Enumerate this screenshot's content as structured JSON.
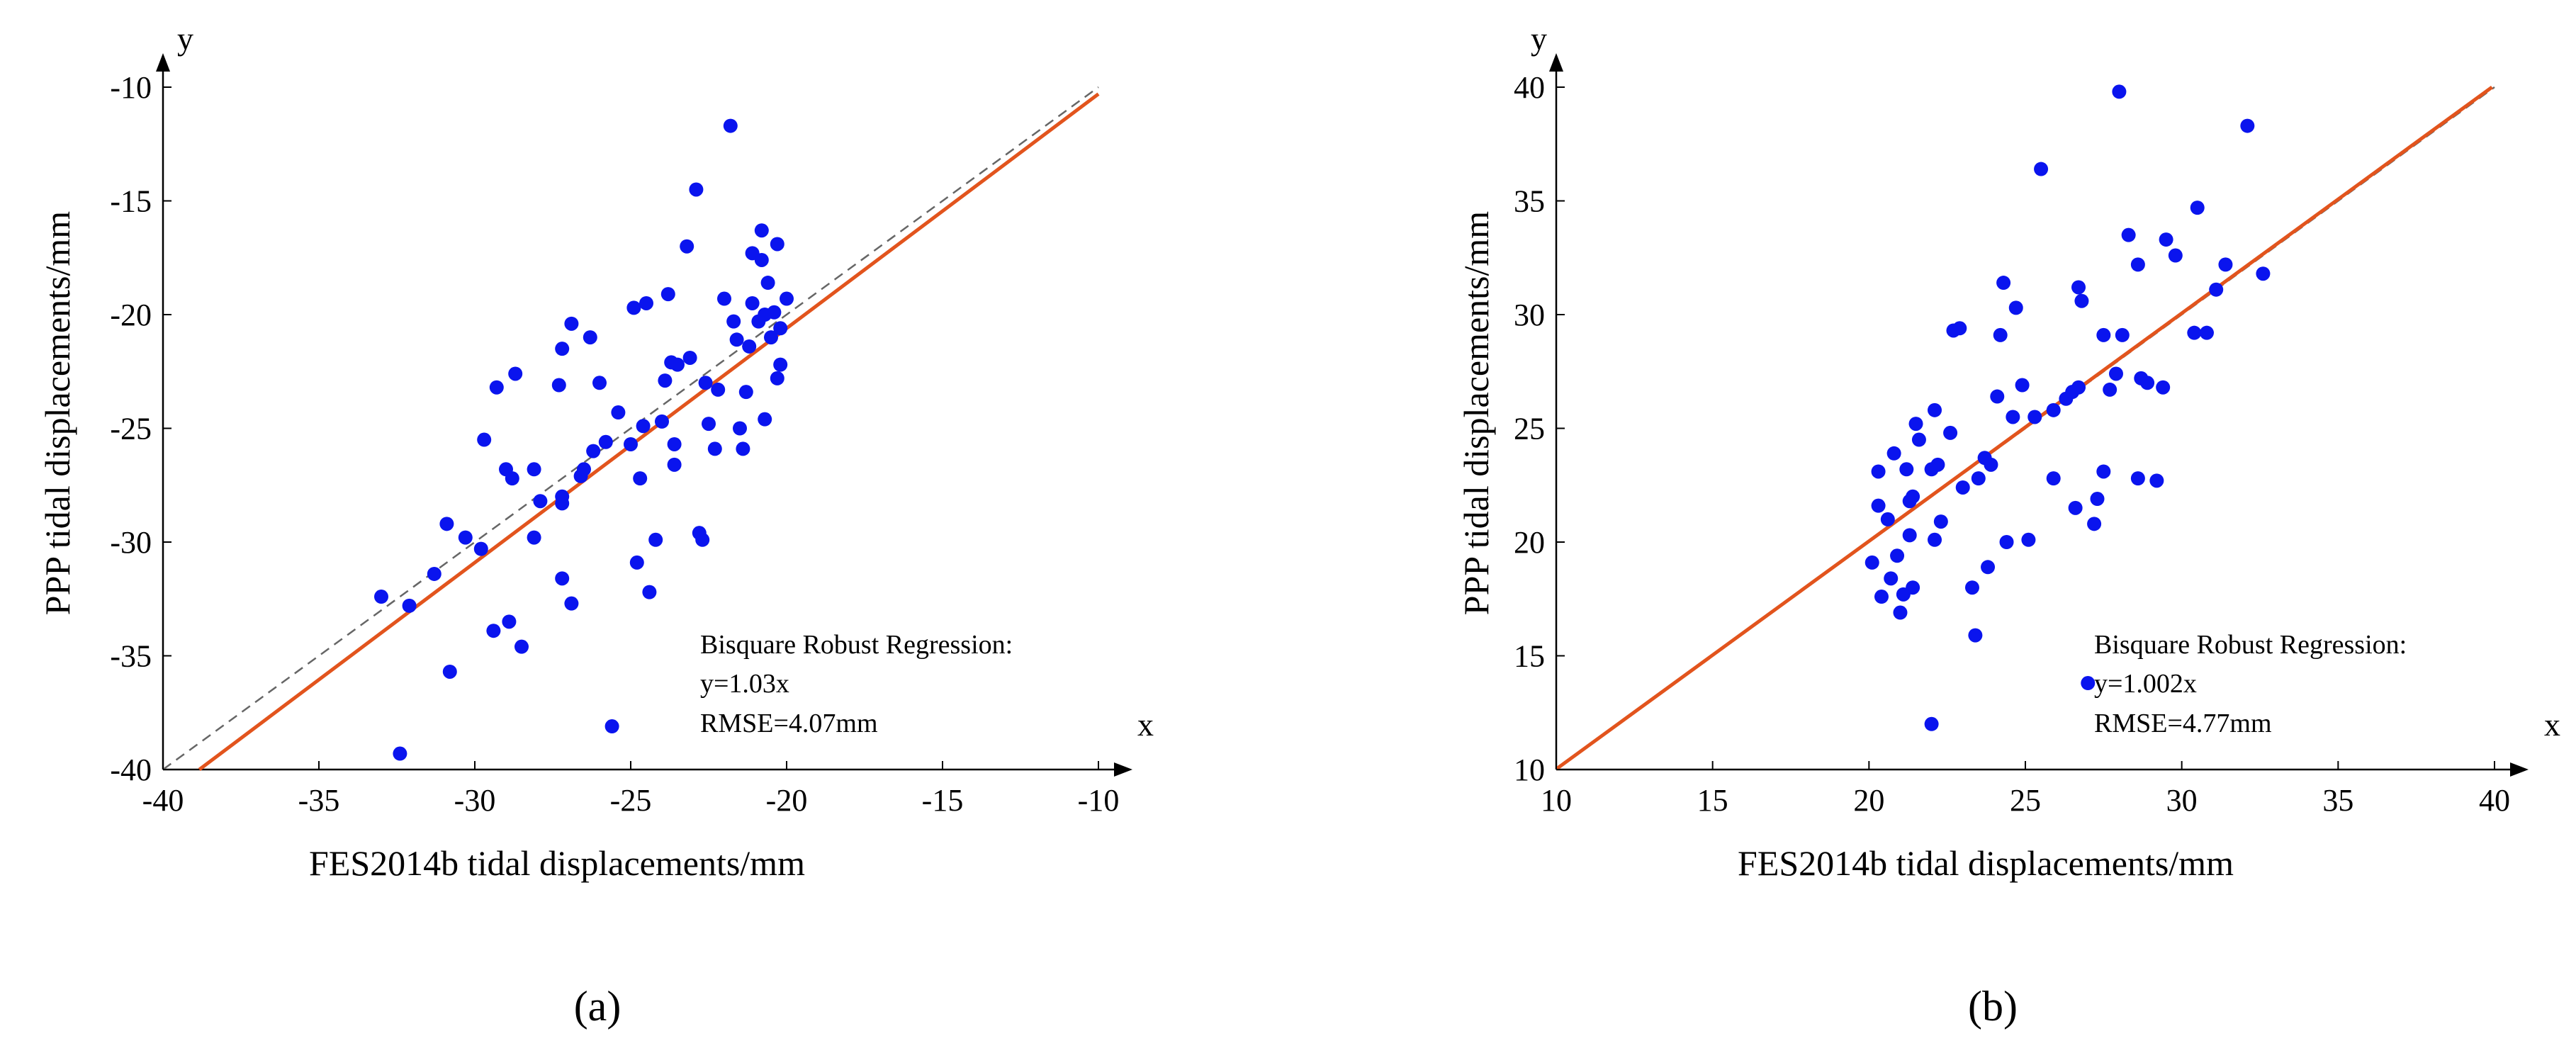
{
  "chart_data": [
    {
      "type": "scatter",
      "panel_label": "(a)",
      "xlabel": "FES2014b tidal displacements/mm",
      "ylabel": "PPP tidal displacements/mm",
      "x_arrow_label": "x",
      "y_arrow_label": "y",
      "xlim": [
        -40,
        -10
      ],
      "ylim": [
        -40,
        -10
      ],
      "xticks": [
        -40,
        -35,
        -30,
        -25,
        -20,
        -15,
        -10
      ],
      "yticks": [
        -40,
        -35,
        -30,
        -25,
        -20,
        -15,
        -10
      ],
      "grid": false,
      "annotation": [
        "Bisquare Robust Regression:",
        "y=1.03x",
        "RMSE=4.07mm"
      ],
      "fit_line": {
        "slope": 1.03,
        "color": "#e2541d"
      },
      "reference_line": {
        "slope": 1.0,
        "style": "dashed",
        "color": "#666666"
      },
      "marker_color": "#0a14ee",
      "points": [
        [
          -33.0,
          -32.4
        ],
        [
          -32.1,
          -32.8
        ],
        [
          -32.4,
          -39.3
        ],
        [
          -31.3,
          -31.4
        ],
        [
          -30.9,
          -29.2
        ],
        [
          -30.8,
          -35.7
        ],
        [
          -30.3,
          -29.8
        ],
        [
          -29.8,
          -30.3
        ],
        [
          -29.7,
          -25.5
        ],
        [
          -29.4,
          -33.9
        ],
        [
          -29.3,
          -23.2
        ],
        [
          -29.0,
          -26.8
        ],
        [
          -28.9,
          -33.5
        ],
        [
          -28.8,
          -27.2
        ],
        [
          -28.7,
          -22.6
        ],
        [
          -28.5,
          -34.6
        ],
        [
          -28.1,
          -29.8
        ],
        [
          -28.1,
          -26.8
        ],
        [
          -27.9,
          -28.2
        ],
        [
          -27.3,
          -23.1
        ],
        [
          -27.2,
          -21.5
        ],
        [
          -27.2,
          -28.0
        ],
        [
          -27.2,
          -28.3
        ],
        [
          -27.2,
          -31.6
        ],
        [
          -26.9,
          -32.7
        ],
        [
          -26.9,
          -20.4
        ],
        [
          -26.6,
          -27.1
        ],
        [
          -26.5,
          -26.8
        ],
        [
          -26.3,
          -21.0
        ],
        [
          -26.2,
          -26.0
        ],
        [
          -26.0,
          -23.0
        ],
        [
          -25.8,
          -25.6
        ],
        [
          -25.6,
          -38.1
        ],
        [
          -25.4,
          -24.3
        ],
        [
          -25.0,
          -25.7
        ],
        [
          -24.9,
          -19.7
        ],
        [
          -24.8,
          -30.9
        ],
        [
          -24.7,
          -27.2
        ],
        [
          -24.6,
          -24.9
        ],
        [
          -24.5,
          -19.5
        ],
        [
          -24.4,
          -32.2
        ],
        [
          -24.2,
          -29.9
        ],
        [
          -24.0,
          -24.7
        ],
        [
          -23.9,
          -22.9
        ],
        [
          -23.8,
          -19.1
        ],
        [
          -23.7,
          -22.1
        ],
        [
          -23.6,
          -26.6
        ],
        [
          -23.6,
          -25.7
        ],
        [
          -23.5,
          -22.2
        ],
        [
          -23.2,
          -17.0
        ],
        [
          -23.1,
          -21.9
        ],
        [
          -22.9,
          -14.5
        ],
        [
          -22.8,
          -29.6
        ],
        [
          -22.7,
          -29.9
        ],
        [
          -22.6,
          -23.0
        ],
        [
          -22.5,
          -24.8
        ],
        [
          -22.3,
          -25.9
        ],
        [
          -22.2,
          -23.3
        ],
        [
          -22.0,
          -19.3
        ],
        [
          -21.8,
          -11.7
        ],
        [
          -21.7,
          -20.3
        ],
        [
          -21.6,
          -21.1
        ],
        [
          -21.5,
          -25.0
        ],
        [
          -21.4,
          -25.9
        ],
        [
          -21.3,
          -23.4
        ],
        [
          -21.2,
          -21.4
        ],
        [
          -21.1,
          -19.5
        ],
        [
          -21.1,
          -17.3
        ],
        [
          -20.9,
          -20.3
        ],
        [
          -20.8,
          -16.3
        ],
        [
          -20.8,
          -17.6
        ],
        [
          -20.7,
          -20.0
        ],
        [
          -20.7,
          -24.6
        ],
        [
          -20.6,
          -18.6
        ],
        [
          -20.5,
          -21.0
        ],
        [
          -20.4,
          -19.9
        ],
        [
          -20.3,
          -22.8
        ],
        [
          -20.3,
          -16.9
        ],
        [
          -20.2,
          -20.6
        ],
        [
          -20.2,
          -22.2
        ],
        [
          -20.0,
          -19.3
        ]
      ]
    },
    {
      "type": "scatter",
      "panel_label": "(b)",
      "xlabel": "FES2014b tidal displacements/mm",
      "ylabel": "PPP tidal displacements/mm",
      "x_arrow_label": "x",
      "y_arrow_label": "y",
      "xlim": [
        10,
        40
      ],
      "ylim": [
        10,
        40
      ],
      "xticks": [
        10,
        15,
        20,
        25,
        30,
        35,
        40
      ],
      "yticks": [
        10,
        15,
        20,
        25,
        30,
        35,
        40
      ],
      "grid": false,
      "annotation": [
        "Bisquare Robust Regression:",
        "y=1.002x",
        "RMSE=4.77mm"
      ],
      "fit_line": {
        "slope": 1.002,
        "color": "#e2541d"
      },
      "reference_line": {
        "slope": 1.0,
        "style": "dashed",
        "color": "#666666"
      },
      "marker_color": "#0a14ee",
      "points": [
        [
          20.1,
          19.1
        ],
        [
          20.3,
          23.1
        ],
        [
          20.3,
          21.6
        ],
        [
          20.4,
          17.6
        ],
        [
          20.6,
          21.0
        ],
        [
          20.7,
          18.4
        ],
        [
          20.8,
          23.9
        ],
        [
          20.9,
          19.4
        ],
        [
          21.0,
          16.9
        ],
        [
          21.1,
          17.7
        ],
        [
          21.2,
          23.2
        ],
        [
          21.3,
          20.3
        ],
        [
          21.3,
          21.8
        ],
        [
          21.4,
          22.0
        ],
        [
          21.4,
          18.0
        ],
        [
          21.5,
          25.2
        ],
        [
          21.6,
          24.5
        ],
        [
          22.0,
          12.0
        ],
        [
          22.0,
          23.2
        ],
        [
          22.1,
          25.8
        ],
        [
          22.1,
          20.1
        ],
        [
          22.2,
          23.4
        ],
        [
          22.3,
          20.9
        ],
        [
          22.6,
          24.8
        ],
        [
          22.7,
          29.3
        ],
        [
          22.9,
          29.4
        ],
        [
          23.0,
          22.4
        ],
        [
          23.3,
          18.0
        ],
        [
          23.4,
          15.9
        ],
        [
          23.5,
          22.8
        ],
        [
          23.7,
          23.7
        ],
        [
          23.8,
          18.9
        ],
        [
          23.9,
          23.4
        ],
        [
          24.1,
          26.4
        ],
        [
          24.2,
          29.1
        ],
        [
          24.3,
          31.4
        ],
        [
          24.4,
          20.0
        ],
        [
          24.6,
          25.5
        ],
        [
          24.7,
          30.3
        ],
        [
          24.9,
          26.9
        ],
        [
          25.1,
          20.1
        ],
        [
          25.3,
          25.5
        ],
        [
          25.5,
          36.4
        ],
        [
          25.9,
          22.8
        ],
        [
          25.9,
          25.8
        ],
        [
          26.3,
          26.3
        ],
        [
          26.5,
          26.6
        ],
        [
          26.6,
          21.5
        ],
        [
          26.7,
          26.8
        ],
        [
          26.7,
          31.2
        ],
        [
          26.8,
          30.6
        ],
        [
          27.0,
          13.8
        ],
        [
          27.2,
          20.8
        ],
        [
          27.3,
          21.9
        ],
        [
          27.5,
          23.1
        ],
        [
          27.5,
          29.1
        ],
        [
          27.7,
          26.7
        ],
        [
          27.9,
          27.4
        ],
        [
          28.0,
          39.8
        ],
        [
          28.1,
          29.1
        ],
        [
          28.3,
          33.5
        ],
        [
          28.6,
          32.2
        ],
        [
          28.6,
          22.8
        ],
        [
          28.7,
          27.2
        ],
        [
          28.9,
          27.0
        ],
        [
          29.2,
          22.7
        ],
        [
          29.5,
          33.3
        ],
        [
          29.8,
          32.6
        ],
        [
          30.4,
          29.2
        ],
        [
          30.5,
          34.7
        ],
        [
          30.8,
          29.2
        ],
        [
          31.1,
          31.1
        ],
        [
          31.4,
          32.2
        ],
        [
          32.1,
          38.3
        ],
        [
          32.6,
          31.8
        ],
        [
          29.4,
          26.8
        ]
      ]
    }
  ]
}
